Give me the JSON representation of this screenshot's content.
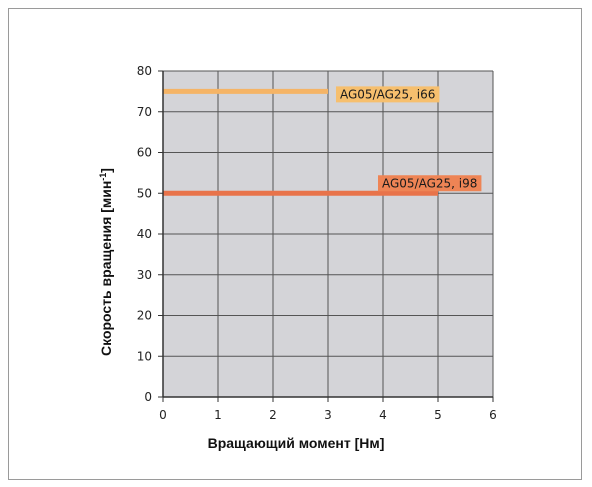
{
  "chart_data": {
    "type": "line",
    "xlabel": "Вращающий момент [Нм]",
    "ylabel": "Скорость вращения [мин",
    "ylabel_sup": "-1",
    "ylabel_end": "]",
    "xlim": [
      0,
      6
    ],
    "ylim": [
      0,
      80
    ],
    "x_ticks": [
      0,
      1,
      2,
      3,
      4,
      5,
      6
    ],
    "y_ticks": [
      0,
      10,
      20,
      30,
      40,
      50,
      60,
      70,
      80
    ],
    "grid": true,
    "series": [
      {
        "name": "AG05/AG25, i66",
        "x": [
          0,
          3
        ],
        "y": [
          75,
          75
        ],
        "color": "#f5b466",
        "label_bg": "#f6bf6e"
      },
      {
        "name": "AG05/AG25, i98",
        "x": [
          0,
          5
        ],
        "y": [
          50,
          50
        ],
        "color": "#e8734a",
        "label_bg": "#ee8455"
      }
    ]
  },
  "colors": {
    "plot_bg": "#d4d4d8",
    "grid": "#555555",
    "axis": "#333333"
  }
}
